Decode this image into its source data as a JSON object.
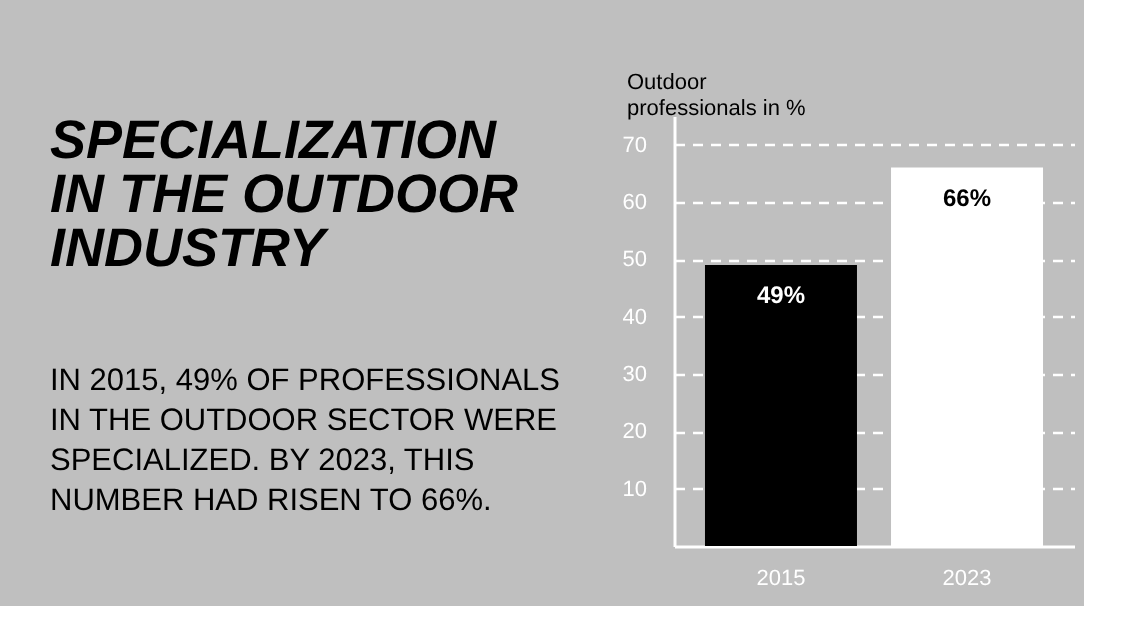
{
  "chart_data": {
    "type": "bar",
    "title": "SPECIALIZATION\nIN THE OUTDOOR\nINDUSTRY",
    "subtitle": "IN 2015, 49% OF PROFESSIONALS\nIN THE OUTDOOR SECTOR WERE\nSPECIALIZED. BY 2023, THIS\nNUMBER HAD RISEN TO 66%.",
    "ylabel": "Outdoor\nprofessionals in %",
    "categories": [
      "2015",
      "2023"
    ],
    "values": [
      49,
      66
    ],
    "colors": [
      "#000000",
      "#ffffff"
    ],
    "value_labels": [
      "49%",
      "66%"
    ],
    "ylim": [
      0,
      75
    ],
    "yticks": [
      10,
      20,
      30,
      40,
      50,
      60,
      70
    ],
    "grid": "y"
  }
}
